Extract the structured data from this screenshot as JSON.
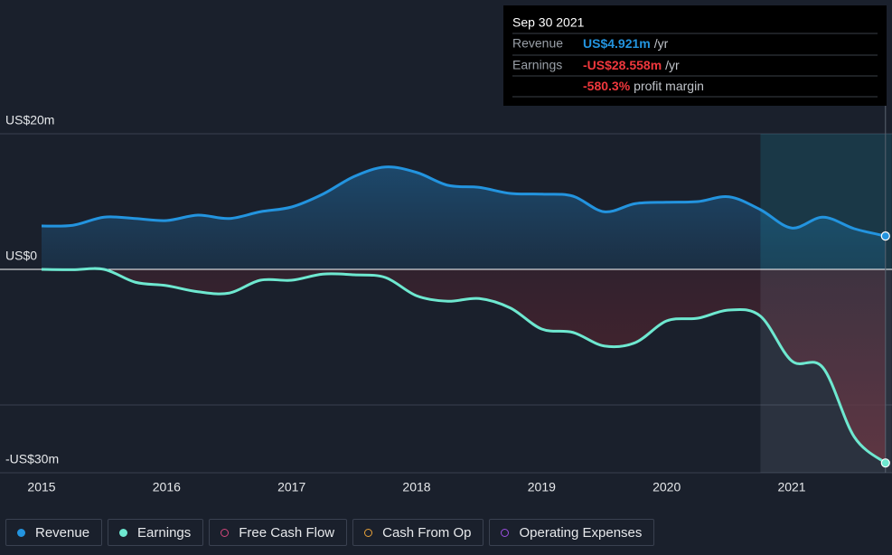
{
  "chart_data": {
    "type": "line",
    "x": [
      2015,
      2015.25,
      2015.5,
      2015.75,
      2016,
      2016.25,
      2016.5,
      2016.75,
      2017,
      2017.25,
      2017.5,
      2017.75,
      2018,
      2018.25,
      2018.5,
      2018.75,
      2019,
      2019.25,
      2019.5,
      2019.75,
      2020,
      2020.25,
      2020.5,
      2020.75,
      2021,
      2021.25,
      2021.5,
      2021.75
    ],
    "series": [
      {
        "name": "Revenue",
        "color": "#2394df",
        "fill": "#1d4a6e",
        "values": [
          6.4,
          6.5,
          7.7,
          7.5,
          7.2,
          8.0,
          7.5,
          8.5,
          9.2,
          11.1,
          13.7,
          15.1,
          14.3,
          12.4,
          12.1,
          11.2,
          11.1,
          10.8,
          8.5,
          9.7,
          9.9,
          10.0,
          10.7,
          8.8,
          6.1,
          7.7,
          6.0,
          4.921
        ]
      },
      {
        "name": "Earnings",
        "color": "#6ee8d0",
        "fill": "#5a2530",
        "values": [
          0,
          -0.05,
          0,
          -1.9,
          -2.4,
          -3.3,
          -3.5,
          -1.6,
          -1.6,
          -0.7,
          -0.8,
          -1.2,
          -3.9,
          -4.7,
          -4.3,
          -5.7,
          -8.8,
          -9.3,
          -11.3,
          -10.8,
          -7.6,
          -7.2,
          -6.0,
          -6.9,
          -13.5,
          -14.5,
          -24.7,
          -28.558
        ]
      }
    ],
    "inactive_series": [
      {
        "name": "Free Cash Flow",
        "color": "#d2477b"
      },
      {
        "name": "Cash From Op",
        "color": "#e8a23a"
      },
      {
        "name": "Operating Expenses",
        "color": "#9b4fe0"
      }
    ],
    "xlim": [
      2014.7,
      2021.8
    ],
    "xticks": [
      2015,
      2016,
      2017,
      2018,
      2019,
      2020,
      2021
    ],
    "ylim": [
      -30,
      20
    ],
    "yticks": [
      {
        "value": 20,
        "label": "US$20m"
      },
      {
        "value": 0,
        "label": "US$0"
      },
      {
        "value": -30,
        "label": "-US$30m"
      }
    ],
    "ygrid": [
      20,
      -20
    ],
    "highlight_from": 2020.75,
    "tooltip": {
      "date": "Sep 30 2021",
      "rows": [
        {
          "label": "Revenue",
          "value": "US$4.921m",
          "unit": "/yr",
          "color": "#2394df"
        },
        {
          "label": "Earnings",
          "value": "-US$28.558m",
          "unit": "/yr",
          "color": "#f0383d"
        }
      ],
      "margin": {
        "value": "-580.3%",
        "text": "profit margin",
        "color": "#f0383d"
      }
    }
  }
}
